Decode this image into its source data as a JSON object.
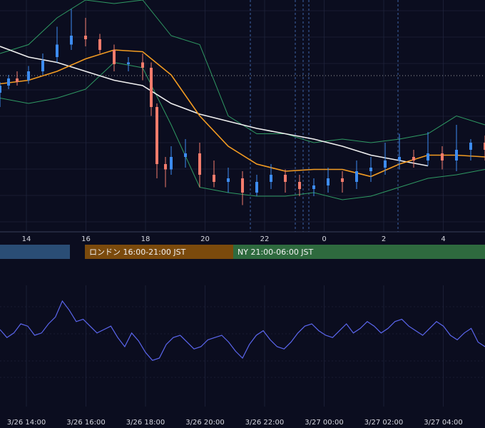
{
  "chart_data": [
    {
      "type": "candlestick",
      "title": "",
      "x_ticks": [
        "14",
        "16",
        "18",
        "20",
        "22",
        "0",
        "2",
        "4"
      ],
      "y_range": [
        0,
        100
      ],
      "colors": {
        "up": "#3d8cf0",
        "down": "#f27c6c",
        "bollinger": "#2f9a63",
        "ma_orange": "#f39c22",
        "ma_white": "#f0f0f0",
        "background": "#0b0d1f",
        "grid": "#262a45"
      },
      "lines": {
        "ma_white": [
          [
            0,
            94
          ],
          [
            1,
            88
          ],
          [
            2,
            85
          ],
          [
            3,
            80
          ],
          [
            4,
            75
          ],
          [
            5,
            72
          ],
          [
            6,
            62
          ],
          [
            7,
            56
          ],
          [
            8,
            52
          ],
          [
            9,
            48
          ],
          [
            10,
            45
          ],
          [
            11,
            42
          ],
          [
            12,
            38
          ],
          [
            13,
            33
          ],
          [
            14,
            30
          ],
          [
            15,
            27
          ]
        ],
        "ma_orange": [
          [
            0,
            73
          ],
          [
            1,
            75
          ],
          [
            2,
            80
          ],
          [
            3,
            87
          ],
          [
            4,
            92
          ],
          [
            5,
            91
          ],
          [
            6,
            78
          ],
          [
            7,
            55
          ],
          [
            8,
            38
          ],
          [
            9,
            28
          ],
          [
            10,
            24
          ],
          [
            11,
            25
          ],
          [
            12,
            25
          ],
          [
            13,
            21
          ],
          [
            14,
            28
          ],
          [
            15,
            33
          ],
          [
            16,
            33
          ],
          [
            17,
            32
          ]
        ],
        "bollinger_upper": [
          [
            0,
            90
          ],
          [
            1,
            95
          ],
          [
            2,
            110
          ],
          [
            3,
            120
          ],
          [
            4,
            118
          ],
          [
            5,
            120
          ],
          [
            6,
            100
          ],
          [
            7,
            95
          ],
          [
            8,
            55
          ],
          [
            9,
            45
          ],
          [
            10,
            45
          ],
          [
            11,
            40
          ],
          [
            12,
            42
          ],
          [
            13,
            40
          ],
          [
            14,
            42
          ],
          [
            15,
            45
          ],
          [
            16,
            55
          ],
          [
            17,
            50
          ]
        ],
        "bollinger_lower": [
          [
            0,
            65
          ],
          [
            1,
            62
          ],
          [
            2,
            65
          ],
          [
            3,
            70
          ],
          [
            4,
            85
          ],
          [
            5,
            82
          ],
          [
            6,
            50
          ],
          [
            7,
            15
          ],
          [
            8,
            12
          ],
          [
            9,
            10
          ],
          [
            10,
            10
          ],
          [
            11,
            12
          ],
          [
            12,
            8
          ],
          [
            13,
            10
          ],
          [
            14,
            15
          ],
          [
            15,
            20
          ],
          [
            16,
            22
          ],
          [
            17,
            25
          ]
        ]
      },
      "candles": [
        [
          0,
          68,
          72,
          60,
          74
        ],
        [
          0.3,
          72,
          76,
          70,
          78
        ],
        [
          0.6,
          76,
          74,
          72,
          80
        ],
        [
          1,
          75,
          80,
          73,
          83
        ],
        [
          1.5,
          80,
          86,
          78,
          90
        ],
        [
          2,
          88,
          95,
          85,
          105
        ],
        [
          2.5,
          95,
          100,
          92,
          115
        ],
        [
          3,
          100,
          98,
          94,
          110
        ],
        [
          3.5,
          98,
          92,
          90,
          101
        ],
        [
          4,
          92,
          84,
          80,
          95
        ],
        [
          4.5,
          84,
          85,
          80,
          88
        ],
        [
          5,
          85,
          82,
          75,
          90
        ],
        [
          5.3,
          82,
          60,
          55,
          85
        ],
        [
          5.5,
          60,
          28,
          20,
          62
        ],
        [
          5.8,
          28,
          25,
          15,
          32
        ],
        [
          6,
          25,
          32,
          22,
          38
        ],
        [
          6.5,
          32,
          34,
          26,
          42
        ],
        [
          7,
          34,
          22,
          15,
          40
        ],
        [
          7.5,
          22,
          18,
          15,
          30
        ],
        [
          8,
          18,
          20,
          12,
          26
        ],
        [
          8.5,
          20,
          12,
          5,
          24
        ],
        [
          9,
          12,
          18,
          10,
          22
        ],
        [
          9.5,
          18,
          22,
          14,
          28
        ],
        [
          10,
          22,
          18,
          12,
          25
        ],
        [
          10.5,
          18,
          14,
          10,
          22
        ],
        [
          11,
          14,
          16,
          10,
          20
        ],
        [
          11.5,
          16,
          20,
          12,
          26
        ],
        [
          12,
          20,
          18,
          12,
          24
        ],
        [
          12.5,
          18,
          24,
          14,
          30
        ],
        [
          13,
          24,
          26,
          18,
          32
        ],
        [
          13.5,
          26,
          30,
          22,
          40
        ],
        [
          14,
          30,
          32,
          25,
          45
        ],
        [
          14.5,
          32,
          30,
          26,
          36
        ],
        [
          15,
          30,
          34,
          27,
          46
        ],
        [
          15.5,
          34,
          30,
          25,
          38
        ],
        [
          16,
          30,
          36,
          24,
          50
        ],
        [
          16.5,
          36,
          40,
          30,
          42
        ],
        [
          17,
          40,
          36,
          30,
          44
        ]
      ]
    },
    {
      "type": "line",
      "title": "",
      "x_ticks": [
        "3/26 14:00",
        "3/26 16:00",
        "3/26 18:00",
        "3/26 20:00",
        "3/26 22:00",
        "3/27 00:00",
        "3/27 02:00",
        "3/27 04:00"
      ],
      "colors": {
        "line": "#5b66ee",
        "grid": "#262a45"
      },
      "series": [
        {
          "values": [
            55,
            48,
            52,
            60,
            58,
            50,
            52,
            60,
            66,
            80,
            72,
            62,
            64,
            58,
            52,
            55,
            58,
            48,
            40,
            52,
            45,
            35,
            28,
            30,
            42,
            48,
            50,
            44,
            38,
            40,
            46,
            48,
            50,
            44,
            36,
            30,
            42,
            50,
            54,
            46,
            40,
            38,
            44,
            52,
            58,
            60,
            54,
            50,
            48,
            54,
            60,
            52,
            56,
            62,
            58,
            52,
            56,
            62,
            64,
            58,
            54,
            50,
            56,
            62,
            58,
            50,
            46,
            52,
            56,
            44,
            40
          ]
        }
      ]
    }
  ],
  "session_bands": [
    {
      "label": "",
      "color": "#2a4d75"
    },
    {
      "label": "ロンドン 16:00-21:00 JST",
      "color": "#7b4a0c"
    },
    {
      "label": "NY 21:00-06:00 JST",
      "color": "#2e6a3e"
    }
  ]
}
